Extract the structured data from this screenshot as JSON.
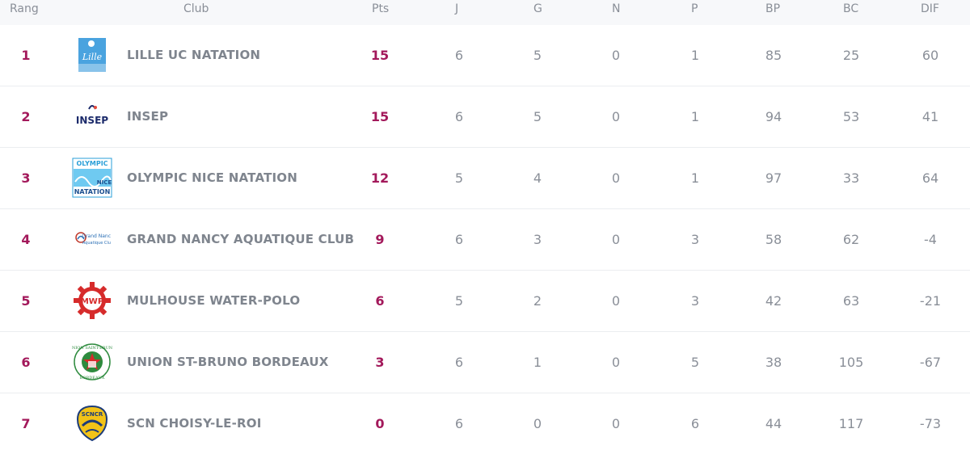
{
  "headers": {
    "rang": "Rang",
    "club": "Club",
    "pts": "Pts",
    "j": "J",
    "g": "G",
    "n": "N",
    "p": "P",
    "bp": "BP",
    "bc": "BC",
    "dif": "DIF"
  },
  "rows": [
    {
      "rank": "1",
      "club": "LILLE UC NATATION",
      "pts": "15",
      "j": "6",
      "g": "5",
      "n": "0",
      "p": "1",
      "bp": "85",
      "bc": "25",
      "dif": "60",
      "logo": "lille-logo",
      "logo_text": "Lille"
    },
    {
      "rank": "2",
      "club": "INSEP",
      "pts": "15",
      "j": "6",
      "g": "5",
      "n": "0",
      "p": "1",
      "bp": "94",
      "bc": "53",
      "dif": "41",
      "logo": "insep-logo",
      "logo_text": "INSEP"
    },
    {
      "rank": "3",
      "club": "OLYMPIC NICE NATATION",
      "pts": "12",
      "j": "5",
      "g": "4",
      "n": "0",
      "p": "1",
      "bp": "97",
      "bc": "33",
      "dif": "64",
      "logo": "olympic-nice-logo",
      "logo_text": "OLYMPIC NICE NATATION"
    },
    {
      "rank": "4",
      "club": "GRAND NANCY AQUATIQUE CLUB",
      "pts": "9",
      "j": "6",
      "g": "3",
      "n": "0",
      "p": "3",
      "bp": "58",
      "bc": "62",
      "dif": "-4",
      "logo": "grand-nancy-logo",
      "logo_text": "Grand Nancy Aquatique Club"
    },
    {
      "rank": "5",
      "club": "MULHOUSE WATER-POLO",
      "pts": "6",
      "j": "5",
      "g": "2",
      "n": "0",
      "p": "3",
      "bp": "42",
      "bc": "63",
      "dif": "-21",
      "logo": "mulhouse-logo",
      "logo_text": "MWP"
    },
    {
      "rank": "6",
      "club": "UNION ST-BRUNO BORDEAUX",
      "pts": "3",
      "j": "6",
      "g": "1",
      "n": "0",
      "p": "5",
      "bp": "38",
      "bc": "105",
      "dif": "-67",
      "logo": "union-st-bruno-logo",
      "logo_text": "UNION SAINT-BRUNO BORDEAUX"
    },
    {
      "rank": "7",
      "club": "SCN CHOISY-LE-ROI",
      "pts": "0",
      "j": "6",
      "g": "0",
      "n": "0",
      "p": "6",
      "bp": "44",
      "bc": "117",
      "dif": "-73",
      "logo": "scn-choisy-logo",
      "logo_text": "SCNCR"
    }
  ],
  "colors": {
    "accent": "#a3195b",
    "text": "#8a8f98",
    "border": "#ebedf0",
    "header_bg": "#f7f8fa"
  }
}
